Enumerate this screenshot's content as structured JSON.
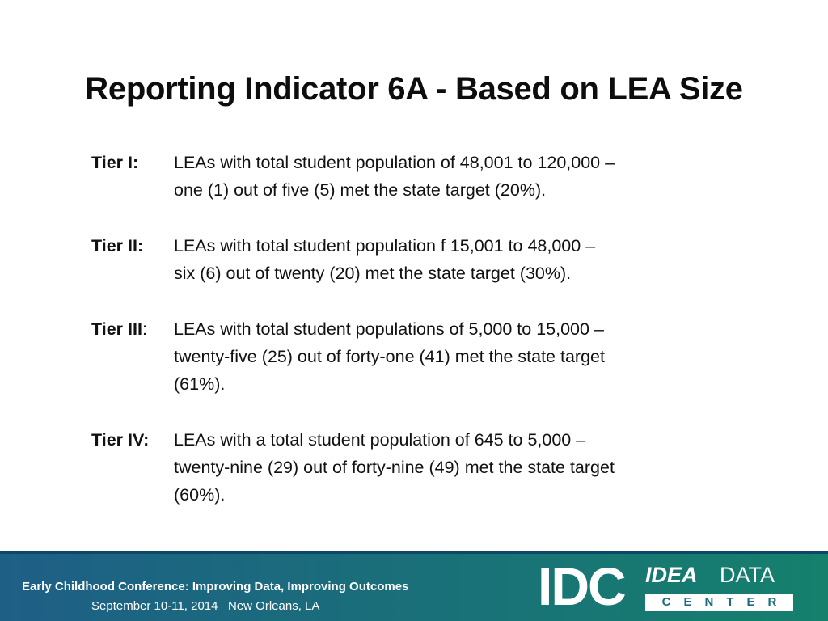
{
  "slide": {
    "title": "Reporting Indicator 6A - Based on LEA Size"
  },
  "tiers": [
    {
      "label": "Tier I:",
      "label_suffix": "",
      "lines": [
        "LEAs with total student population of 48,001 to 120,000 –",
        "one (1) out of five (5) met the state target (20%)."
      ]
    },
    {
      "label": "Tier II:",
      "label_suffix": "",
      "lines": [
        "LEAs with total student population f 15,001 to 48,000 –",
        "six (6) out of twenty (20) met the state target (30%)."
      ]
    },
    {
      "label": "Tier III",
      "label_suffix": ":",
      "lines": [
        "LEAs with total student populations of 5,000 to 15,000 –",
        "twenty-five (25) out of forty-one (41) met the state target",
        "(61%)."
      ]
    },
    {
      "label": "Tier IV:",
      "label_suffix": "",
      "lines": [
        "LEAs with a total student population of 645 to 5,000 –",
        "twenty-nine  (29) out of forty-nine (49) met the state target",
        "(60%)."
      ]
    }
  ],
  "footer": {
    "conference": "Early Childhood Conference: Improving Data, Improving Outcomes",
    "date_location": "September 10-11, 2014   New Orleans, LA",
    "logo": {
      "mark": "IDC",
      "word1": "IDEA",
      "word2": "DATA",
      "word3": "CENTER"
    },
    "colors": {
      "gradient_start": "#1e5f86",
      "gradient_end": "#15806c"
    }
  }
}
